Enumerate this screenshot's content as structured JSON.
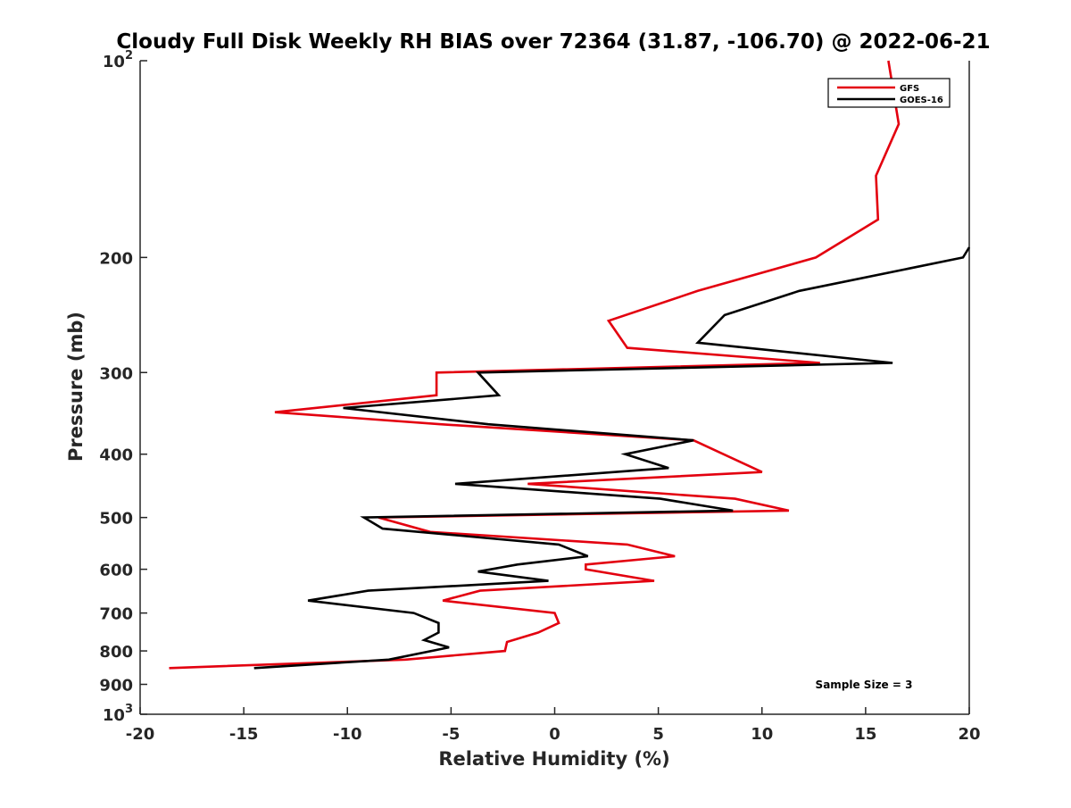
{
  "chart_data": {
    "type": "line",
    "title": "Cloudy Full Disk Weekly RH BIAS over 72364 (31.87, -106.70) @ 2022-06-21",
    "xlabel": "Relative Humidity (%)",
    "ylabel": "Pressure (mb)",
    "xlim": [
      -20,
      20
    ],
    "ylim": [
      100,
      1000
    ],
    "y_scale": "log",
    "y_reversed": true,
    "grid": false,
    "legend_position": "top-right",
    "x_ticks": [
      -20,
      -15,
      -10,
      -5,
      0,
      5,
      10,
      15,
      20
    ],
    "x_tick_labels": [
      "-20",
      "-15",
      "-10",
      "-5",
      "0",
      "5",
      "10",
      "15",
      "20"
    ],
    "y_ticks": [
      100,
      200,
      300,
      400,
      500,
      600,
      700,
      800,
      900,
      1000
    ],
    "y_tick_labels": [
      {
        "base": "10",
        "exp": "2"
      },
      {
        "base": "200",
        "exp": ""
      },
      {
        "base": "300",
        "exp": ""
      },
      {
        "base": "400",
        "exp": ""
      },
      {
        "base": "500",
        "exp": ""
      },
      {
        "base": "600",
        "exp": ""
      },
      {
        "base": "700",
        "exp": ""
      },
      {
        "base": "800",
        "exp": ""
      },
      {
        "base": "900",
        "exp": ""
      },
      {
        "base": "10",
        "exp": "3"
      }
    ],
    "series": [
      {
        "name": "GFS",
        "color": "#e3000f",
        "points": [
          [
            16.1,
            100
          ],
          [
            16.6,
            125
          ],
          [
            15.5,
            150
          ],
          [
            15.6,
            175
          ],
          [
            12.6,
            200
          ],
          [
            6.9,
            225
          ],
          [
            2.6,
            250
          ],
          [
            3.5,
            275
          ],
          [
            12.8,
            290
          ],
          [
            -5.7,
            300
          ],
          [
            -5.7,
            325
          ],
          [
            -13.5,
            345
          ],
          [
            -5.5,
            360
          ],
          [
            6.7,
            381
          ],
          [
            10.0,
            426
          ],
          [
            -1.3,
            444
          ],
          [
            8.7,
            468
          ],
          [
            11.3,
            488
          ],
          [
            -8.5,
            500
          ],
          [
            -6.0,
            526
          ],
          [
            3.5,
            550
          ],
          [
            5.8,
            573
          ],
          [
            1.5,
            590
          ],
          [
            1.5,
            600
          ],
          [
            4.8,
            625
          ],
          [
            -3.6,
            647
          ],
          [
            -5.4,
            670
          ],
          [
            0.0,
            700
          ],
          [
            0.2,
            725
          ],
          [
            -0.8,
            750
          ],
          [
            -2.3,
            775
          ],
          [
            -2.4,
            800
          ],
          [
            -7.2,
            825
          ],
          [
            -18.6,
            850
          ]
        ]
      },
      {
        "name": "GOES-16",
        "color": "#000000",
        "points": [
          [
            20.0,
            193
          ],
          [
            19.7,
            200
          ],
          [
            11.8,
            225
          ],
          [
            8.2,
            245
          ],
          [
            6.9,
            270
          ],
          [
            16.3,
            290
          ],
          [
            -3.7,
            300
          ],
          [
            -2.7,
            325
          ],
          [
            -10.2,
            340
          ],
          [
            -3.2,
            360
          ],
          [
            6.7,
            381
          ],
          [
            3.4,
            400
          ],
          [
            5.5,
            420
          ],
          [
            -4.8,
            444
          ],
          [
            5.1,
            468
          ],
          [
            8.6,
            488
          ],
          [
            -9.2,
            500
          ],
          [
            -8.3,
            520
          ],
          [
            0.2,
            550
          ],
          [
            1.6,
            573
          ],
          [
            -1.8,
            590
          ],
          [
            -3.7,
            605
          ],
          [
            -0.3,
            625
          ],
          [
            -9.0,
            647
          ],
          [
            -11.9,
            670
          ],
          [
            -6.8,
            700
          ],
          [
            -5.6,
            725
          ],
          [
            -5.6,
            750
          ],
          [
            -6.3,
            770
          ],
          [
            -5.1,
            790
          ],
          [
            -8.0,
            825
          ],
          [
            -14.5,
            850
          ]
        ]
      }
    ],
    "annotations": [
      "Sample Size = 3"
    ]
  }
}
